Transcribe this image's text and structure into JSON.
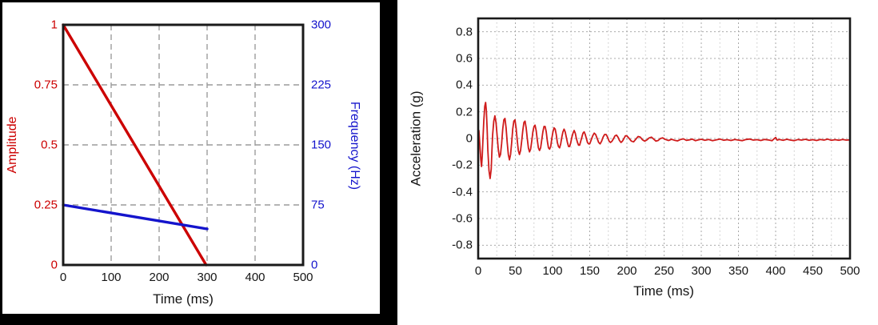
{
  "figure": {
    "background": "#ffffff",
    "left_panel_border_color": "#000000"
  },
  "chart_data": [
    {
      "id": "sweep-profile",
      "type": "line",
      "xlabel": "Time (ms)",
      "ylabel_left": "Amplitude",
      "ylabel_right": "Frequency (Hz)",
      "xlim": [
        0,
        500
      ],
      "ylim_left": [
        0,
        1
      ],
      "ylim_right": [
        0,
        300
      ],
      "x_ticks": [
        0,
        100,
        200,
        300,
        400,
        500
      ],
      "y_ticks_left": [
        1,
        0.75,
        0.5,
        0.25,
        0
      ],
      "y_ticks_right": [
        300,
        225,
        150,
        75,
        0
      ],
      "axis_colors": {
        "left": "#cc0000",
        "right": "#1414cc",
        "x": "#151515"
      },
      "grid": {
        "style": "dashed",
        "color": "#9c9c9c",
        "dash": "7 5",
        "width": 1.4,
        "x_values": [
          100,
          200,
          300,
          400
        ],
        "y_values": [
          0.25,
          0.5,
          0.75
        ]
      },
      "legend": "none",
      "series": [
        {
          "name": "amplitude",
          "axis": "left",
          "color": "#cc0000",
          "width": 3.4,
          "points": [
            [
              0,
              1
            ],
            [
              298,
              0
            ]
          ]
        },
        {
          "name": "frequency",
          "axis": "right",
          "color": "#1414cc",
          "width": 3.4,
          "points": [
            [
              0,
              75
            ],
            [
              300,
              45
            ]
          ]
        }
      ]
    },
    {
      "id": "acceleration-response",
      "type": "line",
      "xlabel": "Time (ms)",
      "ylabel": "Acceleration (g)",
      "xlim": [
        0,
        500
      ],
      "ylim": [
        -0.9,
        0.9
      ],
      "x_ticks": [
        0,
        50,
        100,
        150,
        200,
        250,
        300,
        350,
        400,
        450,
        500
      ],
      "y_ticks": [
        0.8,
        0.6,
        0.4,
        0.2,
        0,
        -0.2,
        -0.4,
        -0.6,
        -0.8
      ],
      "axis_colors": {
        "left": "#151515",
        "x": "#151515"
      },
      "grid": {
        "style": "dotted",
        "color": "#a9a9a9",
        "dash": "2 3",
        "width": 1,
        "minor_color": "#c6c6c6",
        "minor_dash": "1.5 3.5",
        "x_values": [
          50,
          100,
          150,
          200,
          250,
          300,
          350,
          400,
          450
        ],
        "x_minor_values": [
          25,
          75,
          125,
          175,
          225,
          275,
          325,
          375,
          425,
          475
        ],
        "y_values": [
          -0.8,
          -0.6,
          -0.4,
          -0.2,
          0,
          0.2,
          0.4,
          0.6,
          0.8
        ]
      },
      "legend": "none",
      "series": [
        {
          "name": "acceleration",
          "axis": "left",
          "color": "#cf1b1b",
          "width": 1.8,
          "points": [
            [
              0,
              0.02
            ],
            [
              1,
              0.06
            ],
            [
              2,
              -0.03
            ],
            [
              3.5,
              -0.16
            ],
            [
              4.5,
              -0.21
            ],
            [
              5.5,
              -0.13
            ],
            [
              6.5,
              0
            ],
            [
              7.5,
              0.13
            ],
            [
              8.8,
              0.24
            ],
            [
              10,
              0.27
            ],
            [
              11,
              0.21
            ],
            [
              12,
              0.07
            ],
            [
              13,
              -0.09
            ],
            [
              14.5,
              -0.24
            ],
            [
              16,
              -0.3
            ],
            [
              17.5,
              -0.23
            ],
            [
              18.5,
              -0.09
            ],
            [
              19.5,
              0.03
            ],
            [
              21,
              0.13
            ],
            [
              22.5,
              0.17
            ],
            [
              24,
              0.12
            ],
            [
              25.5,
              0.02
            ],
            [
              27,
              -0.08
            ],
            [
              28.5,
              -0.14
            ],
            [
              30,
              -0.12
            ],
            [
              31.5,
              -0.04
            ],
            [
              33,
              0.07
            ],
            [
              34.5,
              0.14
            ],
            [
              36,
              0.15
            ],
            [
              37.5,
              0.08
            ],
            [
              39,
              -0.03
            ],
            [
              40.5,
              -0.12
            ],
            [
              42,
              -0.16
            ],
            [
              43.5,
              -0.12
            ],
            [
              45,
              -0.03
            ],
            [
              46.5,
              0.07
            ],
            [
              48,
              0.13
            ],
            [
              49.5,
              0.14
            ],
            [
              51,
              0.08
            ],
            [
              52.5,
              -0.01
            ],
            [
              54,
              -0.09
            ],
            [
              55.5,
              -0.12
            ],
            [
              57,
              -0.09
            ],
            [
              58.5,
              -0.02
            ],
            [
              60,
              0.06
            ],
            [
              61.5,
              0.12
            ],
            [
              63,
              0.13
            ],
            [
              64.5,
              0.08
            ],
            [
              66,
              0
            ],
            [
              67.5,
              -0.07
            ],
            [
              69,
              -0.1
            ],
            [
              70.5,
              -0.08
            ],
            [
              72,
              -0.02
            ],
            [
              73.5,
              0.05
            ],
            [
              75,
              0.09
            ],
            [
              76.5,
              0.1
            ],
            [
              78,
              0.06
            ],
            [
              79.5,
              -0.01
            ],
            [
              81,
              -0.07
            ],
            [
              82.5,
              -0.09
            ],
            [
              84,
              -0.07
            ],
            [
              85.5,
              -0.01
            ],
            [
              87,
              0.05
            ],
            [
              88.5,
              0.09
            ],
            [
              90,
              0.09
            ],
            [
              91.5,
              0.05
            ],
            [
              93,
              -0.02
            ],
            [
              94.5,
              -0.07
            ],
            [
              96,
              -0.08
            ],
            [
              97.5,
              -0.06
            ],
            [
              99,
              0
            ],
            [
              100.5,
              0.05
            ],
            [
              102,
              0.08
            ],
            [
              103.5,
              0.07
            ],
            [
              105,
              0.03
            ],
            [
              106.5,
              -0.03
            ],
            [
              108,
              -0.06
            ],
            [
              109.5,
              -0.07
            ],
            [
              111,
              -0.04
            ],
            [
              112.5,
              0.01
            ],
            [
              114,
              0.05
            ],
            [
              115.5,
              0.07
            ],
            [
              117,
              0.05
            ],
            [
              118.5,
              0.01
            ],
            [
              120,
              -0.03
            ],
            [
              121.5,
              -0.06
            ],
            [
              123,
              -0.06
            ],
            [
              124.5,
              -0.03
            ],
            [
              126,
              0.01
            ],
            [
              127.5,
              0.04
            ],
            [
              129,
              0.06
            ],
            [
              130.5,
              0.04
            ],
            [
              132,
              0
            ],
            [
              133.5,
              -0.03
            ],
            [
              135,
              -0.05
            ],
            [
              136.5,
              -0.05
            ],
            [
              138,
              -0.02
            ],
            [
              139.5,
              0.01
            ],
            [
              141,
              0.04
            ],
            [
              142.5,
              0.05
            ],
            [
              144,
              0.03
            ],
            [
              145.5,
              0
            ],
            [
              147,
              -0.03
            ],
            [
              148.5,
              -0.04
            ],
            [
              150,
              -0.04
            ],
            [
              152,
              -0.01
            ],
            [
              154,
              0.02
            ],
            [
              156,
              0.04
            ],
            [
              158,
              0.03
            ],
            [
              160,
              0
            ],
            [
              162,
              -0.03
            ],
            [
              164,
              -0.04
            ],
            [
              166,
              -0.02
            ],
            [
              168,
              0.01
            ],
            [
              170,
              0.03
            ],
            [
              172,
              0.03
            ],
            [
              174,
              0.01
            ],
            [
              176,
              -0.02
            ],
            [
              178,
              -0.03
            ],
            [
              180,
              -0.02
            ],
            [
              182,
              0
            ],
            [
              184,
              0.02
            ],
            [
              186,
              0.025
            ],
            [
              188,
              0.01
            ],
            [
              190,
              -0.015
            ],
            [
              192,
              -0.03
            ],
            [
              194,
              -0.02
            ],
            [
              196,
              0
            ],
            [
              198,
              0.02
            ],
            [
              200,
              0.02
            ],
            [
              203,
              0
            ],
            [
              206,
              -0.02
            ],
            [
              209,
              -0.025
            ],
            [
              212,
              -0.005
            ],
            [
              215,
              0.015
            ],
            [
              218,
              0.01
            ],
            [
              221,
              -0.01
            ],
            [
              224,
              -0.02
            ],
            [
              227,
              -0.01
            ],
            [
              230,
              0.005
            ],
            [
              233,
              0.01
            ],
            [
              236,
              -0.005
            ],
            [
              239,
              -0.02
            ],
            [
              242,
              -0.015
            ],
            [
              245,
              0
            ],
            [
              248,
              0.005
            ],
            [
              252,
              -0.008
            ],
            [
              256,
              -0.015
            ],
            [
              260,
              -0.006
            ],
            [
              264,
              -0.013
            ],
            [
              268,
              -0.018
            ],
            [
              272,
              -0.008
            ],
            [
              276,
              -0.003
            ],
            [
              280,
              -0.014
            ],
            [
              284,
              -0.01
            ],
            [
              288,
              -0.005
            ],
            [
              292,
              -0.016
            ],
            [
              296,
              -0.01
            ],
            [
              300,
              -0.006
            ],
            [
              305,
              -0.013
            ],
            [
              310,
              -0.008
            ],
            [
              315,
              -0.016
            ],
            [
              320,
              -0.01
            ],
            [
              325,
              -0.004
            ],
            [
              330,
              -0.013
            ],
            [
              335,
              -0.009
            ],
            [
              340,
              -0.015
            ],
            [
              345,
              -0.007
            ],
            [
              350,
              -0.012
            ],
            [
              355,
              -0.016
            ],
            [
              360,
              -0.008
            ],
            [
              365,
              -0.004
            ],
            [
              370,
              -0.012
            ],
            [
              375,
              -0.009
            ],
            [
              380,
              -0.015
            ],
            [
              385,
              -0.007
            ],
            [
              390,
              -0.011
            ],
            [
              395,
              -0.017
            ],
            [
              398,
              -0.002
            ],
            [
              400,
              0.008
            ],
            [
              402,
              -0.012
            ],
            [
              405,
              -0.008
            ],
            [
              410,
              -0.014
            ],
            [
              415,
              -0.006
            ],
            [
              420,
              -0.012
            ],
            [
              425,
              -0.016
            ],
            [
              430,
              -0.008
            ],
            [
              435,
              -0.012
            ],
            [
              440,
              -0.006
            ],
            [
              445,
              -0.014
            ],
            [
              450,
              -0.009
            ],
            [
              455,
              -0.015
            ],
            [
              460,
              -0.007
            ],
            [
              465,
              -0.012
            ],
            [
              470,
              -0.005
            ],
            [
              475,
              -0.014
            ],
            [
              480,
              -0.009
            ],
            [
              485,
              -0.013
            ],
            [
              490,
              -0.007
            ],
            [
              495,
              -0.012
            ],
            [
              500,
              -0.01
            ]
          ]
        }
      ]
    }
  ]
}
